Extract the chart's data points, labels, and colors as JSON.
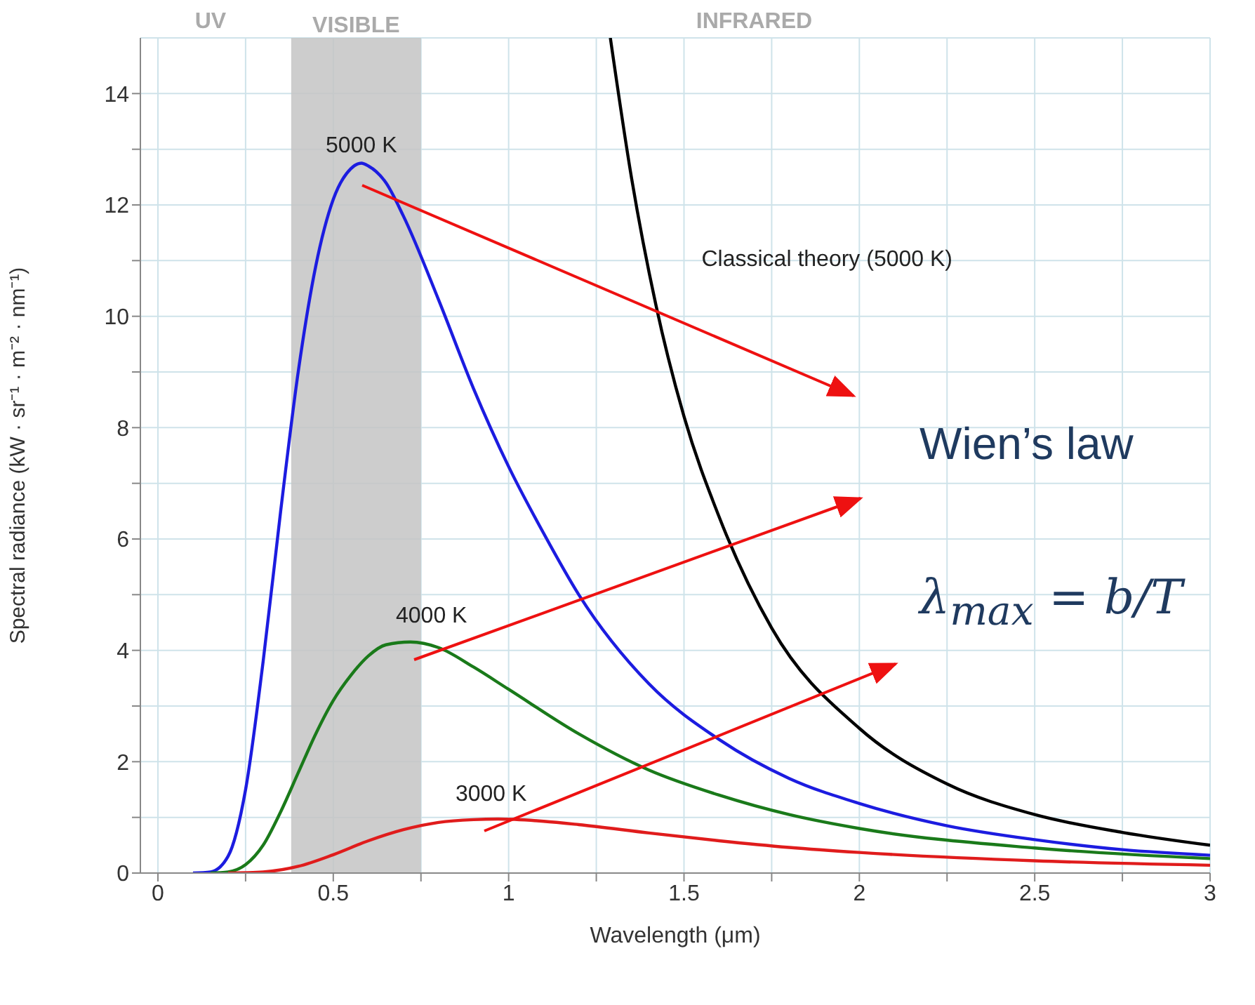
{
  "chart_data": {
    "type": "line",
    "xlabel": "Wavelength (μm)",
    "ylabel": "Spectral radiance (kW · sr⁻¹ · m⁻² · nm⁻¹)",
    "xlim": [
      -0.05,
      3
    ],
    "ylim": [
      0,
      15
    ],
    "xticks": [
      0,
      {
        "value": 0.25,
        "label": null
      },
      0.5,
      {
        "value": 0.75,
        "label": null
      },
      1,
      {
        "value": 1.25,
        "label": null
      },
      1.5,
      {
        "value": 1.75,
        "label": null
      },
      2,
      {
        "value": 2.25,
        "label": null
      },
      2.5,
      {
        "value": 2.75,
        "label": null
      },
      3
    ],
    "yticks": [
      0,
      {
        "value": 1,
        "label": null
      },
      2,
      {
        "value": 3,
        "label": null
      },
      4,
      {
        "value": 5,
        "label": null
      },
      6,
      {
        "value": 7,
        "label": null
      },
      8,
      {
        "value": 9,
        "label": null
      },
      10,
      {
        "value": 11,
        "label": null
      },
      12,
      {
        "value": 13,
        "label": null
      },
      14
    ],
    "grid": true,
    "bands": [
      {
        "axis": "x",
        "from": 0.38,
        "to": 0.75,
        "label": "VISIBLE",
        "color": "#c4c4c4"
      }
    ],
    "series": [
      {
        "name": "5000 K",
        "color": "#1c1ce0",
        "x": [
          0.1,
          0.15,
          0.2,
          0.25,
          0.3,
          0.35,
          0.4,
          0.45,
          0.5,
          0.55,
          0.58,
          0.6,
          0.65,
          0.7,
          0.8,
          0.9,
          1.0,
          1.1,
          1.2,
          1.4,
          1.6,
          1.8,
          2.0,
          2.25,
          2.5,
          2.75,
          3.0
        ],
        "values": [
          0,
          0.02,
          0.3,
          1.5,
          3.8,
          6.5,
          9.0,
          10.9,
          12.1,
          12.65,
          12.75,
          12.7,
          12.4,
          11.8,
          10.3,
          8.7,
          7.3,
          6.1,
          5.0,
          3.4,
          2.4,
          1.7,
          1.25,
          0.85,
          0.6,
          0.42,
          0.32
        ]
      },
      {
        "name": "4000 K",
        "color": "#1a7a1a",
        "x": [
          0.15,
          0.2,
          0.25,
          0.3,
          0.35,
          0.4,
          0.45,
          0.5,
          0.55,
          0.6,
          0.65,
          0.72,
          0.8,
          0.9,
          1.0,
          1.2,
          1.4,
          1.6,
          1.8,
          2.0,
          2.5,
          3.0
        ],
        "values": [
          0,
          0.02,
          0.15,
          0.5,
          1.1,
          1.8,
          2.5,
          3.1,
          3.55,
          3.9,
          4.1,
          4.15,
          4.05,
          3.7,
          3.3,
          2.5,
          1.85,
          1.4,
          1.05,
          0.8,
          0.45,
          0.26
        ]
      },
      {
        "name": "3000 K",
        "color": "#e01c1c",
        "x": [
          0.2,
          0.3,
          0.4,
          0.5,
          0.6,
          0.7,
          0.8,
          0.9,
          0.97,
          1.1,
          1.2,
          1.4,
          1.6,
          1.8,
          2.0,
          2.5,
          3.0
        ],
        "values": [
          0,
          0.02,
          0.12,
          0.33,
          0.58,
          0.78,
          0.91,
          0.96,
          0.97,
          0.93,
          0.87,
          0.72,
          0.58,
          0.46,
          0.37,
          0.22,
          0.14
        ]
      },
      {
        "name": "Classical theory (5000 K)",
        "color": "#000000",
        "x": [
          1.29,
          1.35,
          1.42,
          1.5,
          1.6,
          1.75,
          2.0,
          2.25,
          2.5,
          2.75,
          3.0
        ],
        "values": [
          15,
          12.5,
          10.2,
          8.2,
          6.4,
          4.4,
          2.6,
          1.6,
          1.05,
          0.73,
          0.5
        ]
      }
    ],
    "annotations": [
      "UV",
      "INFRARED",
      "Wien’s law",
      "λ$_{max}$ = b/T"
    ]
  }
}
